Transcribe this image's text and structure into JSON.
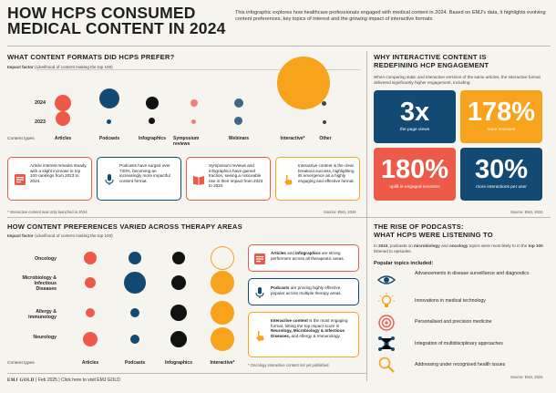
{
  "header": {
    "title": "HOW HCPS CONSUMED MEDICAL CONTENT IN 2024",
    "intro": "This infographic explores how healthcare professionals engaged with medical content in 2024. Based on EMJ's data, it highlights evolving content preferences, key topics of interest and the growing impact of interactive formats"
  },
  "formats": {
    "heading": "WHAT CONTENT FORMATS DID HCPS PREFER?",
    "impact_label": "Impact factor",
    "impact_desc": "(Likelihood of content making the top 100)",
    "years": [
      "2024",
      "2023"
    ],
    "content_types_label": "Content types",
    "columns": [
      "Articles",
      "Podcasts",
      "Infographics",
      "Symposium reviews",
      "Webinars",
      "Interactive*",
      "Other"
    ],
    "cards": [
      {
        "text": "Article interest remains steady, with a slight increase in top 100 rankings from 2023 to 2024.",
        "icon": "article-icon"
      },
      {
        "text": "Podcasts have surged over 730%, becoming an increasingly more impactful content format.",
        "icon": "microphone-icon"
      },
      {
        "text": "Symposium reviews and infographics have gained traction, seeing a noticeable rise in their impact from 2023 to 2024.",
        "icon": "book-icon"
      },
      {
        "text": "Interactive content is the clear breakout success, highlighting its emergence as a highly engaging and effective format.",
        "icon": "hand-pointer-icon"
      }
    ],
    "footnote": "* Interactive content was only launched in 2024.",
    "source": "Source: EMJ, 2024"
  },
  "interactive": {
    "heading_line1": "WHY INTERACTIVE CONTENT IS",
    "heading_line2": "REDEFINING HCP ENGAGEMENT",
    "desc": "When comparing static and interactive versions of the same articles, the interactive format delivered significantly higher engagement, including:",
    "stats": [
      {
        "value": "3x",
        "label": "the page views",
        "color": "#134a74"
      },
      {
        "value": "178%",
        "label": "more sessions",
        "color": "#f7a31c"
      },
      {
        "value": "180%",
        "label": "uplift in engaged sessions",
        "color": "#ee5a4a"
      },
      {
        "value": "30%",
        "label": "more interactions per user",
        "color": "#134a74"
      }
    ],
    "source": "Source: EMJ, 2024"
  },
  "therapy": {
    "heading": "HOW CONTENT PREFERENCES VARIED ACROSS THERAPY AREAS",
    "impact_label": "Impact factor",
    "impact_desc": "(Likelihood of content making the top 100)",
    "rows": [
      "Oncology",
      "Microbiology & Infectious Diseases",
      "Allergy & Immunology",
      "Neurology"
    ],
    "content_types_label": "Content types",
    "columns": [
      "Articles",
      "Podcasts",
      "Infographics",
      "Interactive*"
    ],
    "cards": [
      {
        "bold": "Articles",
        "mid": " and ",
        "bold2": "Infographics",
        "rest": " are strong performers across all therapeutic areas."
      },
      {
        "bold": "Podcasts",
        "mid": "",
        "bold2": "",
        "rest": " are proving highly effective, popular across multiple therapy areas."
      },
      {
        "bold": "Interactive content",
        "mid": " is the most engaging format, hitting the top impact score in ",
        "bold2": "Neurology, Microbiology & Infectious Diseases,",
        "rest": " and Allergy & Immunology."
      }
    ],
    "footnote": "* Oncology interactive content not yet published."
  },
  "podcasts": {
    "heading_line1": "THE RISE OF PODCASTS:",
    "heading_line2": "WHAT HCPS WERE LISTENING TO",
    "desc_pre": "In ",
    "desc_b1": "2024",
    "desc_mid": ", podcasts on ",
    "desc_b2": "microbiology",
    "desc_and": " and ",
    "desc_b3": "oncology",
    "desc_post": " topics were most likely to in the ",
    "desc_b4": "top 100",
    "desc_end": " listened to episodes.",
    "popular_label": "Popular topics included:",
    "topics": [
      {
        "label": "Advancements in disease surveillance and diagnostics",
        "icon": "eye-icon"
      },
      {
        "label": "Innovations in medical technology",
        "icon": "lightbulb-icon"
      },
      {
        "label": "Personalised and precision medicine",
        "icon": "target-icon"
      },
      {
        "label": "Integration of multidisciplinary approaches",
        "icon": "network-icon"
      },
      {
        "label": "Addressing under recognised health issues",
        "icon": "magnifier-icon"
      }
    ],
    "source": "Source: EMJ, 2024"
  },
  "footer": {
    "brand": "EMJ GOLD",
    "date": "Feb 2025",
    "link": "Click here to visit EMJ GOLD"
  }
}
